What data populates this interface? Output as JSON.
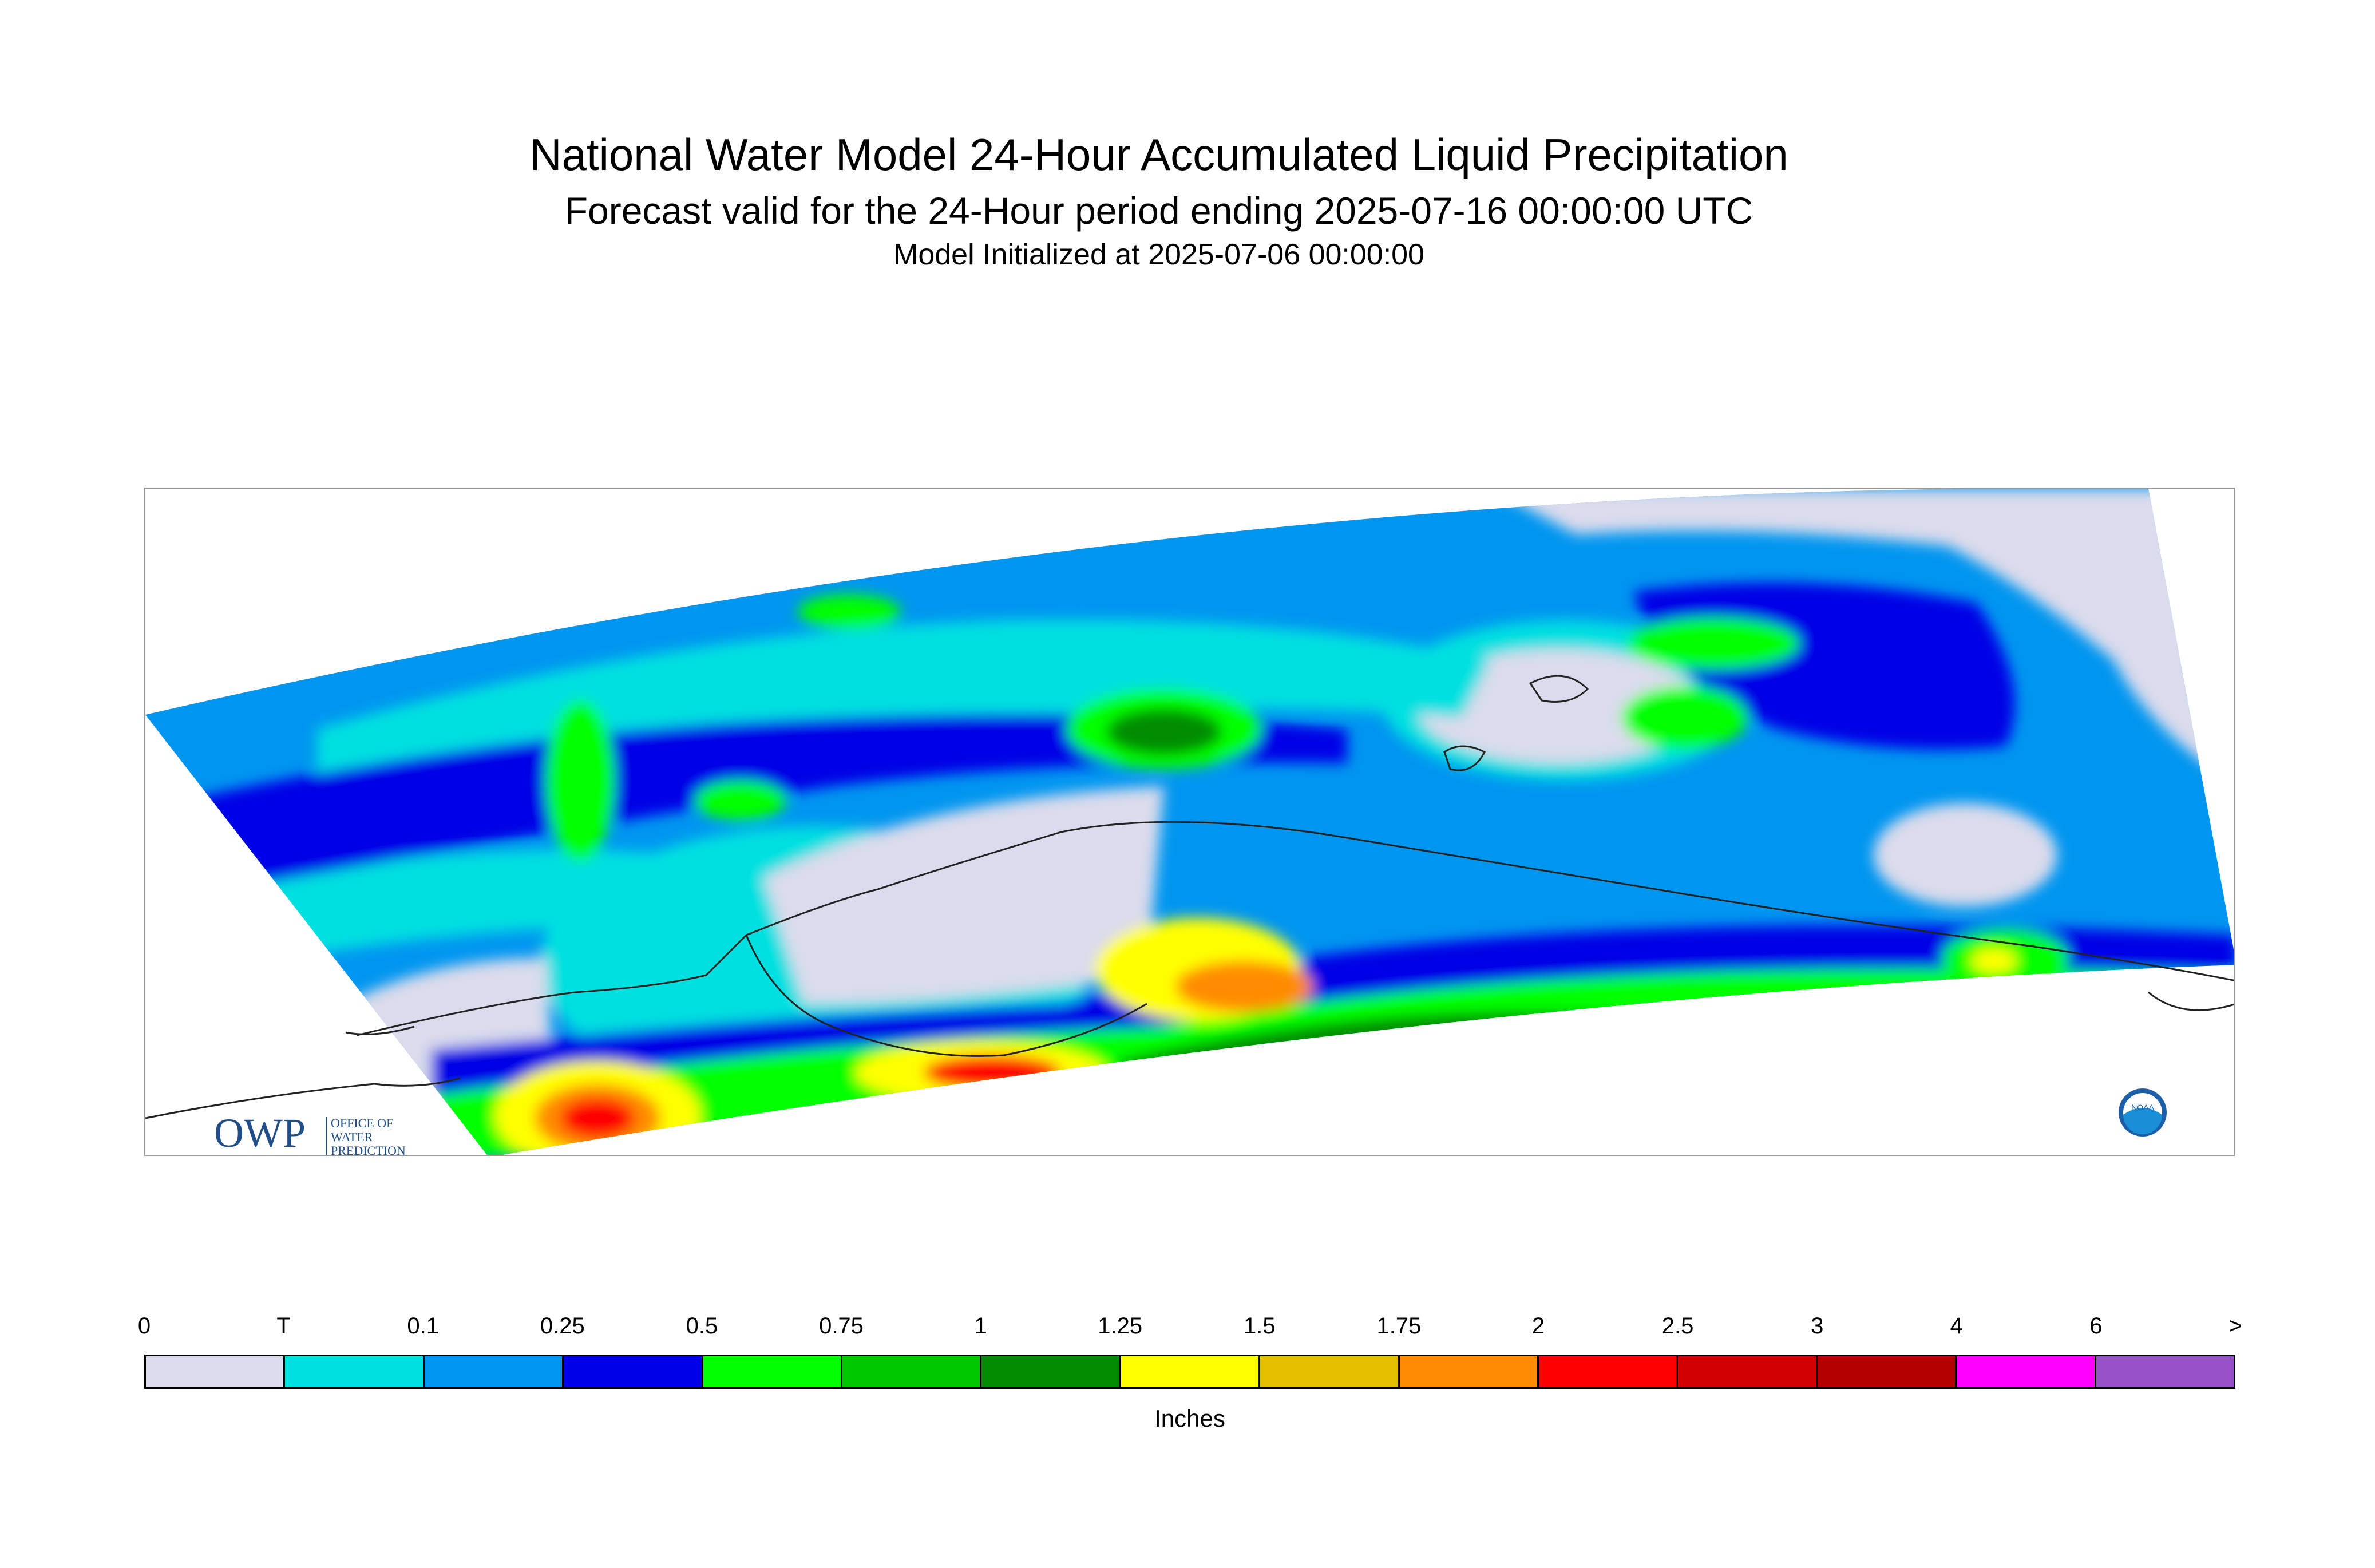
{
  "header": {
    "title": "National Water Model 24-Hour Accumulated Liquid Precipitation",
    "subtitle": "Forecast valid for the 24-Hour period ending 2025-07-16 00:00:00 UTC",
    "init": "Model Initialized at 2025-07-06 00:00:00"
  },
  "logos": {
    "owp_text": "OWP",
    "owp_line1": "OFFICE OF",
    "owp_line2": "WATER",
    "owp_line3": "PREDICTION",
    "noaa_text": "NOAA"
  },
  "legend": {
    "ticks": [
      "0",
      "T",
      "0.1",
      "0.25",
      "0.5",
      "0.75",
      "1",
      "1.25",
      "1.5",
      "1.75",
      "2",
      "2.5",
      "3",
      "4",
      "6",
      ">"
    ],
    "colors": [
      "#dadbec",
      "#00e0e0",
      "#0096f0",
      "#0000e6",
      "#00ff00",
      "#00c800",
      "#008c00",
      "#ffff00",
      "#e6be00",
      "#ff8c00",
      "#ff0000",
      "#d20000",
      "#b40000",
      "#ff00ff",
      "#9650c8"
    ],
    "units": "Inches"
  }
}
